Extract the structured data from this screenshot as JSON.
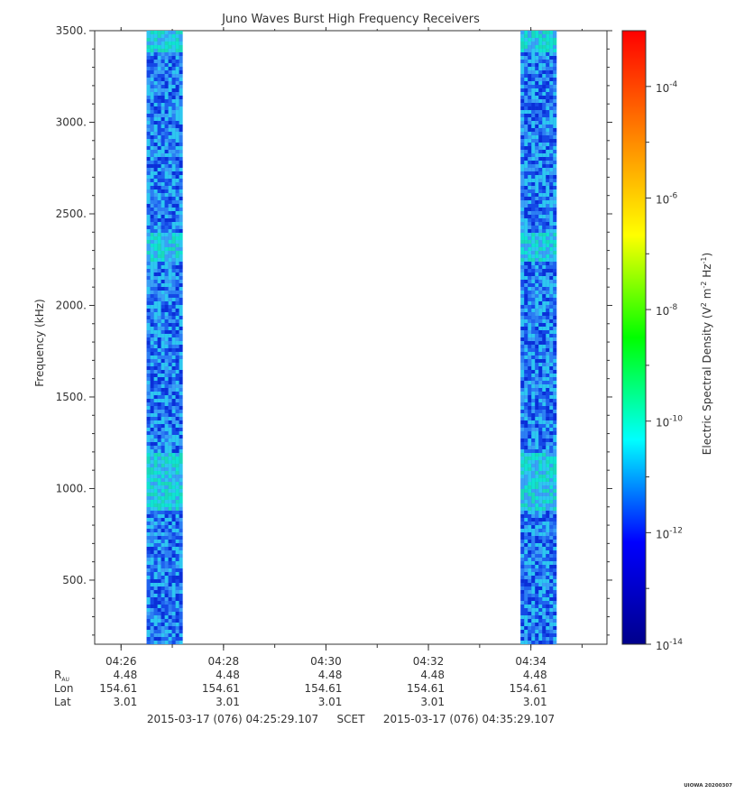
{
  "chart_data": {
    "type": "heatmap",
    "title": "Juno Waves Burst High Frequency Receivers",
    "ylabel": "Frequency (kHz)",
    "colorbar_label_parts": [
      "Electric Spectral Density (V",
      "2",
      " m",
      "-2",
      " Hz",
      "-1",
      ")"
    ],
    "y_ticks": [
      "3500.",
      "3000.",
      "2500.",
      "2000.",
      "1500.",
      "1000.",
      "500."
    ],
    "y_tick_values": [
      3500,
      3000,
      2500,
      2000,
      1500,
      1000,
      500
    ],
    "ylim": [
      150,
      3500
    ],
    "x_ticks": [
      "04:26",
      "04:28",
      "04:30",
      "04:32",
      "04:34"
    ],
    "xlim_minutes": [
      "04:25:29.107",
      "04:35:29.107"
    ],
    "ephemeris": {
      "rows": [
        {
          "label": "R",
          "sub": "AU",
          "values": [
            "4.48",
            "4.48",
            "4.48",
            "4.48",
            "4.48"
          ]
        },
        {
          "label": "Lon",
          "values": [
            "154.61",
            "154.61",
            "154.61",
            "154.61",
            "154.61"
          ]
        },
        {
          "label": "Lat",
          "values": [
            "3.01",
            "3.01",
            "3.01",
            "3.01",
            "3.01"
          ]
        }
      ]
    },
    "time_range": {
      "start": "2015-03-17 (076) 04:25:29.107",
      "frame": "SCET",
      "end": "2015-03-17 (076) 04:35:29.107"
    },
    "colorbar_ticks": [
      {
        "base": "10",
        "exp": "-4",
        "log": -4
      },
      {
        "base": "10",
        "exp": "-6",
        "log": -6
      },
      {
        "base": "10",
        "exp": "-8",
        "log": -8
      },
      {
        "base": "10",
        "exp": "-10",
        "log": -10
      },
      {
        "base": "10",
        "exp": "-12",
        "log": -12
      },
      {
        "base": "10",
        "exp": "-14",
        "log": -14
      }
    ],
    "colorbar_range_log": [
      -14,
      -3
    ],
    "bursts": [
      {
        "start": "04:26:30",
        "end": "04:27:10"
      },
      {
        "start": "04:33:48",
        "end": "04:34:28"
      }
    ],
    "bright_bands_khz": [
      [
        3400,
        3500
      ],
      [
        2250,
        2400
      ],
      [
        1000,
        1200
      ],
      [
        880,
        1000
      ]
    ],
    "colormap": [
      "#00008b",
      "#0000ff",
      "#00ffff",
      "#00ff00",
      "#ffff00",
      "#ff8000",
      "#ff0000"
    ]
  },
  "footer_stamp": "UIOWA 20200307"
}
